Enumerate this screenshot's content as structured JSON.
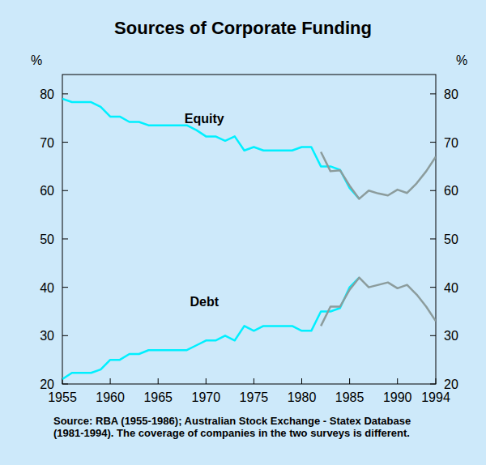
{
  "chart_data": {
    "type": "line",
    "title": "Sources of Corporate Funding",
    "y_label": "%",
    "y2_label": "%",
    "note": "Source: RBA (1955-1986); Australian Stock Exchange - Statex Database (1981-1994). The coverage of companies in the two surveys is different.",
    "xlim": [
      1955,
      1994
    ],
    "xticks": [
      1955,
      1960,
      1965,
      1970,
      1975,
      1980,
      1985,
      1990,
      1994
    ],
    "ylim": [
      20,
      84
    ],
    "yticks": [
      20,
      30,
      40,
      50,
      60,
      70,
      80
    ],
    "y2lim": [
      20,
      84
    ],
    "y2ticks": [
      20,
      30,
      40,
      50,
      60,
      70,
      80
    ],
    "grid": false,
    "series": [
      {
        "name": "Equity",
        "color": "#00f0ff",
        "x": [
          1955,
          1956,
          1957,
          1958,
          1959,
          1960,
          1961,
          1962,
          1963,
          1964,
          1965,
          1966,
          1967,
          1968,
          1969,
          1970,
          1971,
          1972,
          1973,
          1974,
          1975,
          1976,
          1977,
          1978,
          1979,
          1980,
          1981,
          1982,
          1983,
          1984,
          1985,
          1986
        ],
        "values": [
          79,
          78.3,
          78.3,
          78.3,
          77.3,
          75.3,
          75.3,
          74.2,
          74.2,
          73.5,
          73.5,
          73.5,
          73.5,
          73.5,
          72.5,
          71.2,
          71.2,
          70.3,
          71.2,
          68.3,
          69,
          68.3,
          68.3,
          68.3,
          68.3,
          69,
          69,
          65,
          65,
          64.3,
          60.5,
          58.3
        ]
      },
      {
        "name": "Debt",
        "color": "#00f0ff",
        "x": [
          1955,
          1956,
          1957,
          1958,
          1959,
          1960,
          1961,
          1962,
          1963,
          1964,
          1965,
          1966,
          1967,
          1968,
          1969,
          1970,
          1971,
          1972,
          1973,
          1974,
          1975,
          1976,
          1977,
          1978,
          1979,
          1980,
          1981,
          1982,
          1983,
          1984,
          1985,
          1986
        ],
        "values": [
          21,
          22.3,
          22.3,
          22.3,
          23,
          25,
          25,
          26.2,
          26.2,
          27,
          27,
          27,
          27,
          27,
          28,
          29,
          29,
          30,
          29,
          32,
          31,
          32,
          32,
          32,
          32,
          31,
          31,
          35,
          35,
          35.7,
          40,
          42
        ]
      },
      {
        "color": "#8c9c9c",
        "x": [
          1982,
          1983,
          1984,
          1985,
          1986,
          1987,
          1988,
          1989,
          1990,
          1991,
          1992,
          1993,
          1994
        ],
        "values": [
          68,
          64,
          64.2,
          61,
          58.3,
          60,
          59.4,
          59,
          60.2,
          59.5,
          61.5,
          64,
          67
        ]
      },
      {
        "color": "#8c9c9c",
        "x": [
          1982,
          1983,
          1984,
          1985,
          1986,
          1987,
          1988,
          1989,
          1990,
          1991,
          1992,
          1993,
          1994
        ],
        "values": [
          32,
          36,
          36,
          39.5,
          42,
          40,
          40.5,
          41,
          39.8,
          40.5,
          38.5,
          36,
          33
        ]
      }
    ]
  }
}
